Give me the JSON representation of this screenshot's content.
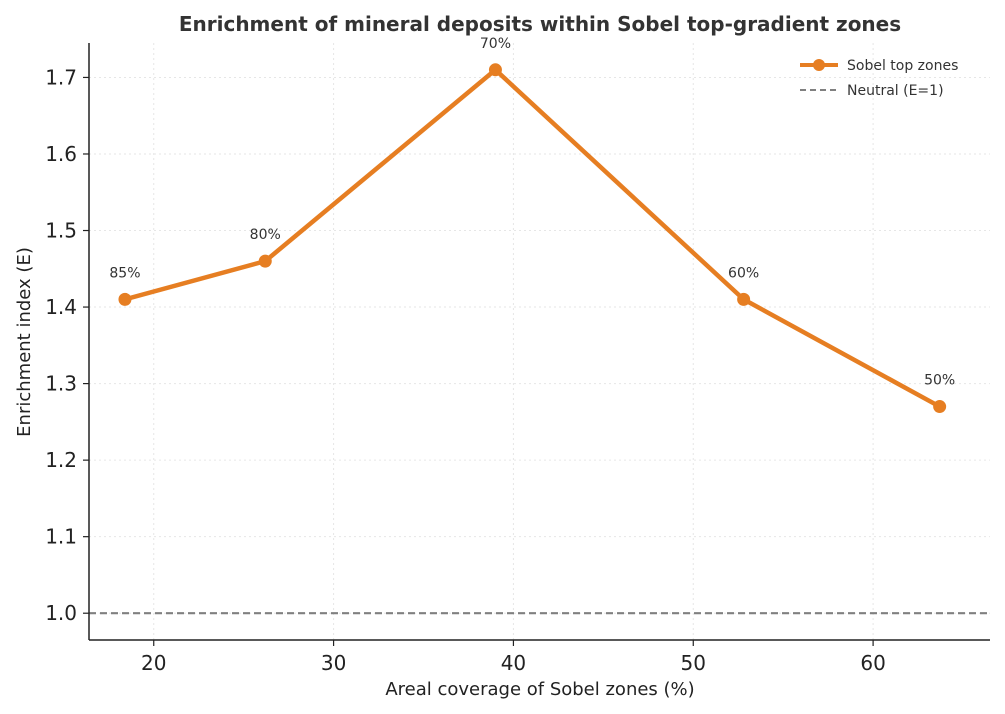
{
  "chart_data": {
    "type": "line",
    "title": "Enrichment of mineral deposits within Sobel top-gradient zones",
    "xlabel": "Areal coverage of Sobel zones (%)",
    "ylabel": "Enrichment index (E)",
    "xlim": [
      16.4,
      66.5
    ],
    "ylim": [
      0.965,
      1.745
    ],
    "xticks": [
      20,
      30,
      40,
      50,
      60
    ],
    "yticks": [
      1.0,
      1.1,
      1.2,
      1.3,
      1.4,
      1.5,
      1.6,
      1.7
    ],
    "ytick_labels": [
      "1.0",
      "1.1",
      "1.2",
      "1.3",
      "1.4",
      "1.5",
      "1.6",
      "1.7"
    ],
    "grid": true,
    "legend_position": "top-right",
    "series": [
      {
        "name": "Sobel top zones",
        "color": "#E67E22",
        "marker": "circle",
        "x": [
          18.4,
          26.2,
          39.0,
          52.8,
          63.7
        ],
        "values": [
          1.41,
          1.46,
          1.71,
          1.41,
          1.27
        ],
        "point_labels": [
          "85%",
          "80%",
          "70%",
          "60%",
          "50%"
        ]
      }
    ],
    "reference_line": {
      "name": "Neutral (E=1)",
      "y": 1.0,
      "color": "#808080",
      "style": "dashed"
    }
  }
}
